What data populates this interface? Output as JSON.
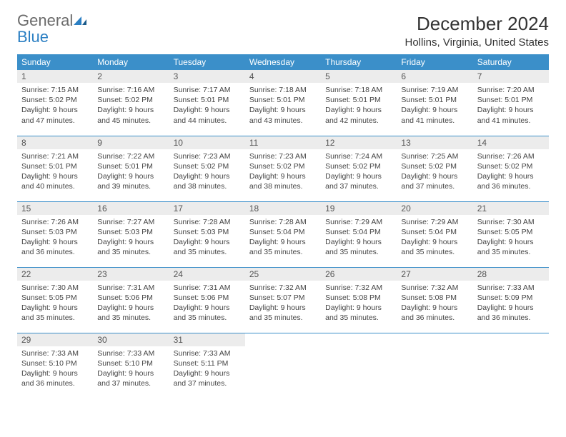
{
  "logo": {
    "general": "General",
    "blue": "Blue"
  },
  "title": "December 2024",
  "location": "Hollins, Virginia, United States",
  "colors": {
    "header_bg": "#3b8fc9",
    "header_fg": "#ffffff",
    "daynum_bg": "#ececec",
    "border": "#3b8fc9",
    "logo_blue": "#2b7fc3",
    "logo_gray": "#6b6b6b"
  },
  "weekdays": [
    "Sunday",
    "Monday",
    "Tuesday",
    "Wednesday",
    "Thursday",
    "Friday",
    "Saturday"
  ],
  "weeks": [
    [
      {
        "n": "1",
        "sr": "Sunrise: 7:15 AM",
        "ss": "Sunset: 5:02 PM",
        "dl": "Daylight: 9 hours and 47 minutes."
      },
      {
        "n": "2",
        "sr": "Sunrise: 7:16 AM",
        "ss": "Sunset: 5:02 PM",
        "dl": "Daylight: 9 hours and 45 minutes."
      },
      {
        "n": "3",
        "sr": "Sunrise: 7:17 AM",
        "ss": "Sunset: 5:01 PM",
        "dl": "Daylight: 9 hours and 44 minutes."
      },
      {
        "n": "4",
        "sr": "Sunrise: 7:18 AM",
        "ss": "Sunset: 5:01 PM",
        "dl": "Daylight: 9 hours and 43 minutes."
      },
      {
        "n": "5",
        "sr": "Sunrise: 7:18 AM",
        "ss": "Sunset: 5:01 PM",
        "dl": "Daylight: 9 hours and 42 minutes."
      },
      {
        "n": "6",
        "sr": "Sunrise: 7:19 AM",
        "ss": "Sunset: 5:01 PM",
        "dl": "Daylight: 9 hours and 41 minutes."
      },
      {
        "n": "7",
        "sr": "Sunrise: 7:20 AM",
        "ss": "Sunset: 5:01 PM",
        "dl": "Daylight: 9 hours and 41 minutes."
      }
    ],
    [
      {
        "n": "8",
        "sr": "Sunrise: 7:21 AM",
        "ss": "Sunset: 5:01 PM",
        "dl": "Daylight: 9 hours and 40 minutes."
      },
      {
        "n": "9",
        "sr": "Sunrise: 7:22 AM",
        "ss": "Sunset: 5:01 PM",
        "dl": "Daylight: 9 hours and 39 minutes."
      },
      {
        "n": "10",
        "sr": "Sunrise: 7:23 AM",
        "ss": "Sunset: 5:02 PM",
        "dl": "Daylight: 9 hours and 38 minutes."
      },
      {
        "n": "11",
        "sr": "Sunrise: 7:23 AM",
        "ss": "Sunset: 5:02 PM",
        "dl": "Daylight: 9 hours and 38 minutes."
      },
      {
        "n": "12",
        "sr": "Sunrise: 7:24 AM",
        "ss": "Sunset: 5:02 PM",
        "dl": "Daylight: 9 hours and 37 minutes."
      },
      {
        "n": "13",
        "sr": "Sunrise: 7:25 AM",
        "ss": "Sunset: 5:02 PM",
        "dl": "Daylight: 9 hours and 37 minutes."
      },
      {
        "n": "14",
        "sr": "Sunrise: 7:26 AM",
        "ss": "Sunset: 5:02 PM",
        "dl": "Daylight: 9 hours and 36 minutes."
      }
    ],
    [
      {
        "n": "15",
        "sr": "Sunrise: 7:26 AM",
        "ss": "Sunset: 5:03 PM",
        "dl": "Daylight: 9 hours and 36 minutes."
      },
      {
        "n": "16",
        "sr": "Sunrise: 7:27 AM",
        "ss": "Sunset: 5:03 PM",
        "dl": "Daylight: 9 hours and 35 minutes."
      },
      {
        "n": "17",
        "sr": "Sunrise: 7:28 AM",
        "ss": "Sunset: 5:03 PM",
        "dl": "Daylight: 9 hours and 35 minutes."
      },
      {
        "n": "18",
        "sr": "Sunrise: 7:28 AM",
        "ss": "Sunset: 5:04 PM",
        "dl": "Daylight: 9 hours and 35 minutes."
      },
      {
        "n": "19",
        "sr": "Sunrise: 7:29 AM",
        "ss": "Sunset: 5:04 PM",
        "dl": "Daylight: 9 hours and 35 minutes."
      },
      {
        "n": "20",
        "sr": "Sunrise: 7:29 AM",
        "ss": "Sunset: 5:04 PM",
        "dl": "Daylight: 9 hours and 35 minutes."
      },
      {
        "n": "21",
        "sr": "Sunrise: 7:30 AM",
        "ss": "Sunset: 5:05 PM",
        "dl": "Daylight: 9 hours and 35 minutes."
      }
    ],
    [
      {
        "n": "22",
        "sr": "Sunrise: 7:30 AM",
        "ss": "Sunset: 5:05 PM",
        "dl": "Daylight: 9 hours and 35 minutes."
      },
      {
        "n": "23",
        "sr": "Sunrise: 7:31 AM",
        "ss": "Sunset: 5:06 PM",
        "dl": "Daylight: 9 hours and 35 minutes."
      },
      {
        "n": "24",
        "sr": "Sunrise: 7:31 AM",
        "ss": "Sunset: 5:06 PM",
        "dl": "Daylight: 9 hours and 35 minutes."
      },
      {
        "n": "25",
        "sr": "Sunrise: 7:32 AM",
        "ss": "Sunset: 5:07 PM",
        "dl": "Daylight: 9 hours and 35 minutes."
      },
      {
        "n": "26",
        "sr": "Sunrise: 7:32 AM",
        "ss": "Sunset: 5:08 PM",
        "dl": "Daylight: 9 hours and 35 minutes."
      },
      {
        "n": "27",
        "sr": "Sunrise: 7:32 AM",
        "ss": "Sunset: 5:08 PM",
        "dl": "Daylight: 9 hours and 36 minutes."
      },
      {
        "n": "28",
        "sr": "Sunrise: 7:33 AM",
        "ss": "Sunset: 5:09 PM",
        "dl": "Daylight: 9 hours and 36 minutes."
      }
    ],
    [
      {
        "n": "29",
        "sr": "Sunrise: 7:33 AM",
        "ss": "Sunset: 5:10 PM",
        "dl": "Daylight: 9 hours and 36 minutes."
      },
      {
        "n": "30",
        "sr": "Sunrise: 7:33 AM",
        "ss": "Sunset: 5:10 PM",
        "dl": "Daylight: 9 hours and 37 minutes."
      },
      {
        "n": "31",
        "sr": "Sunrise: 7:33 AM",
        "ss": "Sunset: 5:11 PM",
        "dl": "Daylight: 9 hours and 37 minutes."
      },
      null,
      null,
      null,
      null
    ]
  ]
}
